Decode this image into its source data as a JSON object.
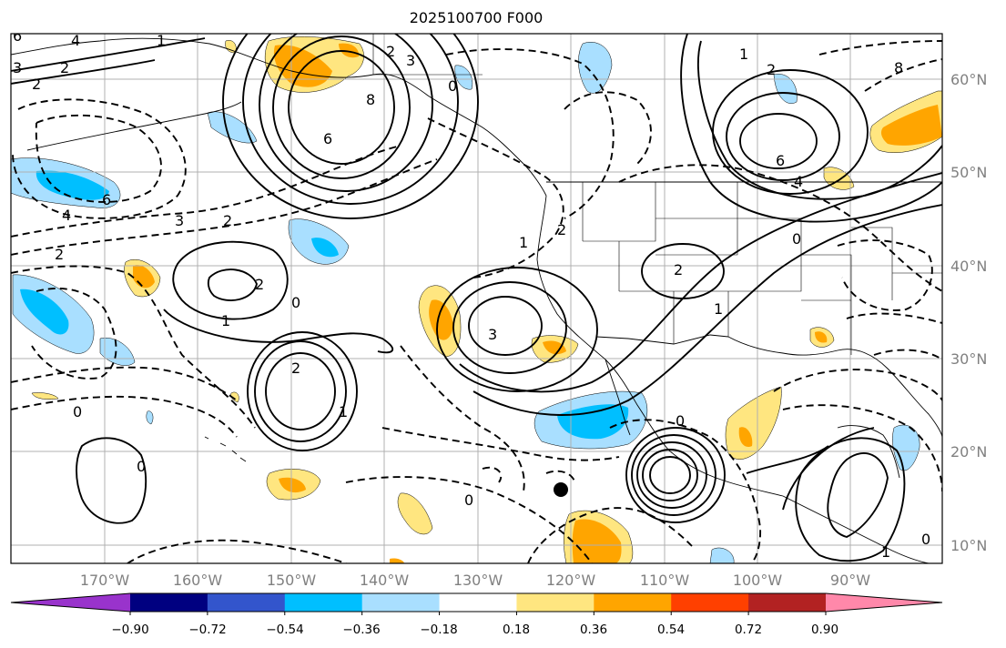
{
  "title": "2025100700 F000",
  "lat_labels": [
    "60°N",
    "50°N",
    "40°N",
    "30°N",
    "20°N",
    "10°N"
  ],
  "lon_labels": [
    "170°W",
    "160°W",
    "150°W",
    "140°W",
    "130°W",
    "120°W",
    "110°W",
    "100°W",
    "90°W"
  ],
  "colorbar": {
    "ticks": [
      "−0.90",
      "−0.72",
      "−0.54",
      "−0.36",
      "−0.18",
      "0.18",
      "0.36",
      "0.54",
      "0.72",
      "0.90"
    ],
    "colors": [
      "#9933cc",
      "#000080",
      "#3355cc",
      "#00bfff",
      "#a9dfff",
      "#ffffff",
      "#ffe680",
      "#ffa500",
      "#ff4000",
      "#b22222",
      "#ff88aa"
    ]
  },
  "contour_labels": [
    "6",
    "4",
    "2",
    "3",
    "2",
    "1",
    "8",
    "6",
    "3",
    "2",
    "0",
    "4",
    "6",
    "2",
    "1",
    "2",
    "0",
    "3",
    "2",
    "2",
    "1",
    "0",
    "0",
    "0",
    "2",
    "1",
    "2",
    "3",
    "1",
    "4",
    "8",
    "6",
    "0",
    "2",
    "1",
    "0",
    "1",
    "0"
  ],
  "colors": {
    "positive": "#ffe680",
    "positive_strong": "#ffa500",
    "negative": "#a9dfff",
    "negative_strong": "#00bfff",
    "grid": "#b0b0b0",
    "tick_label": "#808080"
  }
}
